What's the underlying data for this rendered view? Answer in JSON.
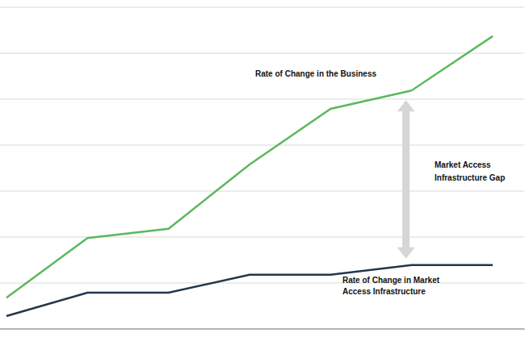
{
  "chart_data": {
    "type": "line",
    "categories": [
      null,
      null,
      null,
      null,
      null,
      null,
      null
    ],
    "series": [
      {
        "name": "Rate of Change in the Business",
        "color": "#5cb85f",
        "values": [
          0.68,
          1.98,
          2.18,
          3.58,
          4.79,
          5.19,
          6.37
        ]
      },
      {
        "name": "Rate of Change in Market Access Infrastructure",
        "color": "#25364a",
        "values": [
          0.28,
          0.79,
          0.79,
          1.18,
          1.18,
          1.39,
          1.39
        ]
      }
    ],
    "annotations": [
      "Market Access Infrastructure Gap"
    ],
    "ylim": [
      0,
      7
    ],
    "yticks": [
      0,
      1,
      2,
      3,
      4,
      5,
      6,
      7
    ],
    "grid": true,
    "tick_labels": false
  }
}
